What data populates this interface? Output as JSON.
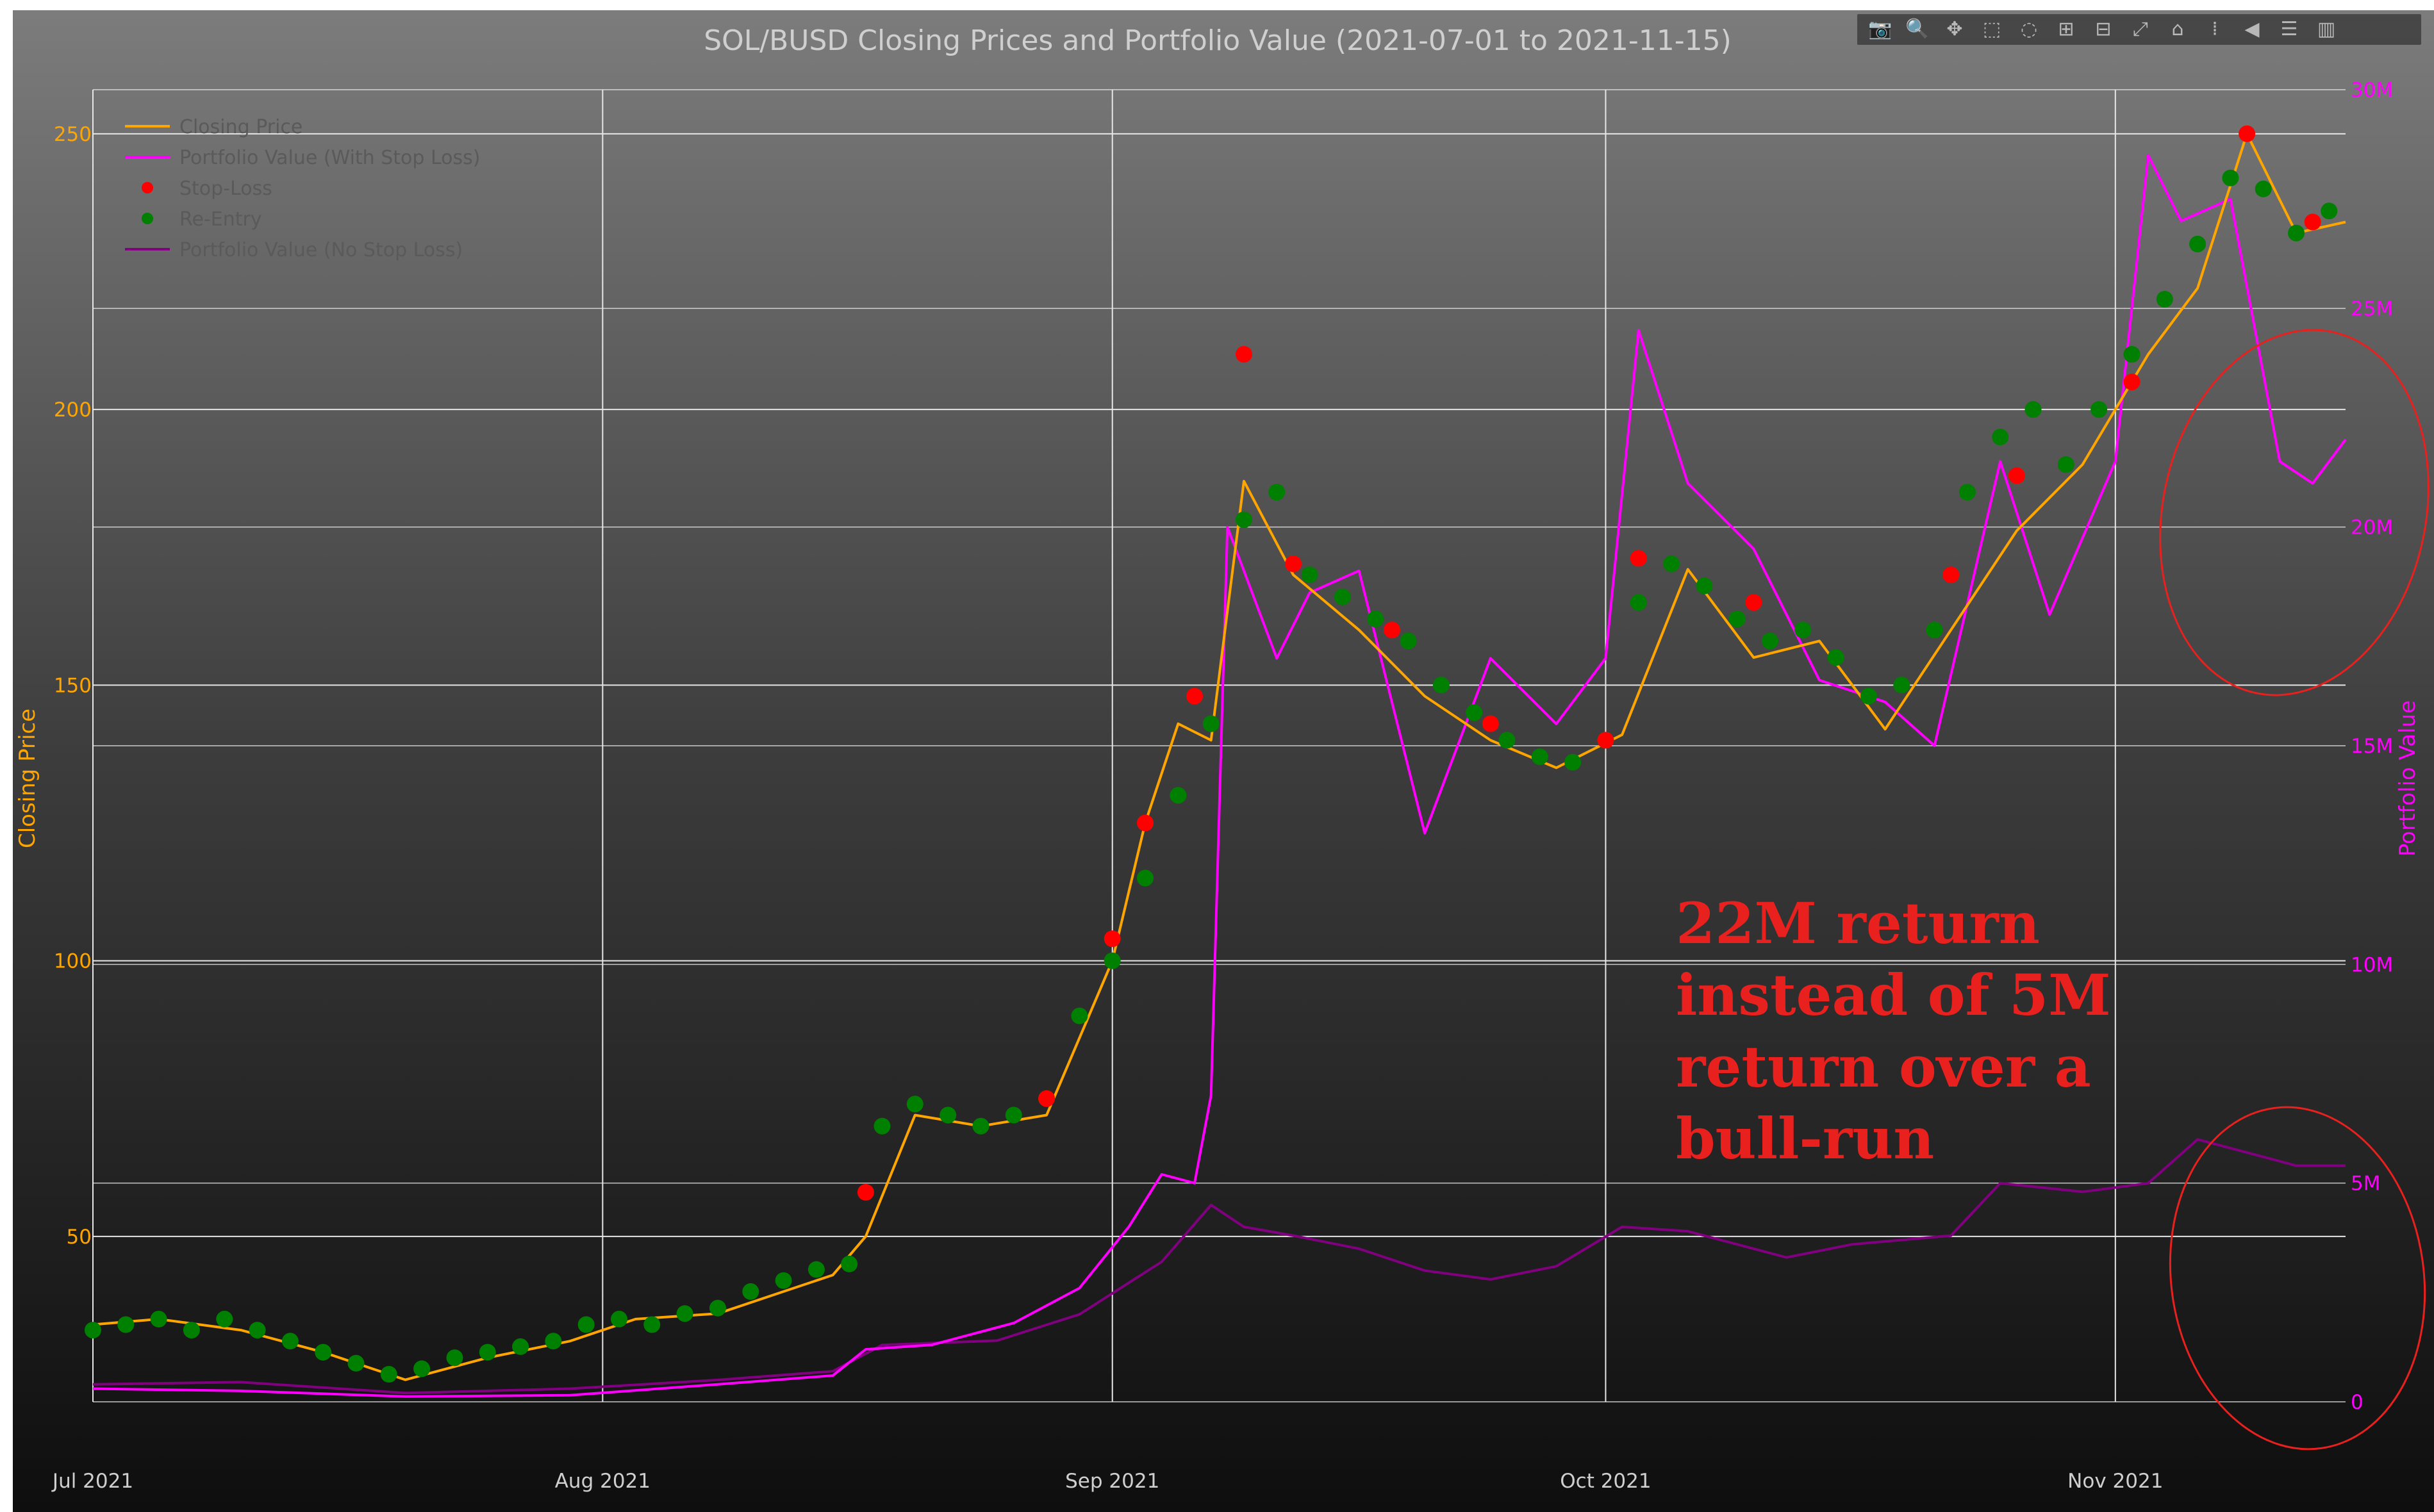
{
  "chart_data": {
    "type": "line",
    "title": "SOL/BUSD Closing Prices and Portfolio Value (2021-07-01 to 2021-11-15)",
    "xlabel": "",
    "ylabel": "Closing Price",
    "y2label": "Portfolio Value",
    "xlim": [
      "2021-07-01",
      "2021-11-15"
    ],
    "ylim": [
      20,
      258
    ],
    "y2lim": [
      0,
      30000000
    ],
    "x_ticks": [
      "Jul 2021",
      "Aug 2021",
      "Sep 2021",
      "Oct 2021",
      "Nov 2021"
    ],
    "y_ticks": [
      "50",
      "100",
      "150",
      "200",
      "250"
    ],
    "y2_ticks": [
      "0",
      "5M",
      "10M",
      "15M",
      "20M",
      "25M",
      "30M"
    ],
    "grid": true,
    "legend_position": "top-left",
    "legend": [
      "Closing Price",
      "Portfolio Value (With Stop Loss)",
      "Stop-Loss",
      "Re-Entry",
      "Portfolio Value (No Stop Loss)"
    ],
    "series": [
      {
        "name": "Closing Price",
        "type": "line",
        "axis": "y",
        "color": "#ffa500",
        "x": [
          "2021-07-01",
          "2021-07-05",
          "2021-07-10",
          "2021-07-15",
          "2021-07-20",
          "2021-07-25",
          "2021-07-30",
          "2021-08-03",
          "2021-08-08",
          "2021-08-12",
          "2021-08-15",
          "2021-08-17",
          "2021-08-20",
          "2021-08-24",
          "2021-08-28",
          "2021-09-01",
          "2021-09-03",
          "2021-09-05",
          "2021-09-07",
          "2021-09-09",
          "2021-09-12",
          "2021-09-16",
          "2021-09-20",
          "2021-09-24",
          "2021-09-28",
          "2021-10-02",
          "2021-10-06",
          "2021-10-10",
          "2021-10-14",
          "2021-10-18",
          "2021-10-22",
          "2021-10-26",
          "2021-10-30",
          "2021-11-03",
          "2021-11-06",
          "2021-11-09",
          "2021-11-12",
          "2021-11-15"
        ],
        "y": [
          34,
          35,
          33,
          29,
          24,
          28,
          31,
          35,
          36,
          40,
          43,
          50,
          72,
          70,
          72,
          100,
          125,
          143,
          140,
          187,
          170,
          160,
          148,
          140,
          135,
          141,
          171,
          155,
          158,
          142,
          160,
          178,
          190,
          210,
          222,
          250,
          232,
          234
        ]
      },
      {
        "name": "Portfolio Value (With Stop Loss)",
        "type": "line",
        "axis": "y2",
        "color": "#ff00ff",
        "x": [
          "2021-07-01",
          "2021-07-10",
          "2021-07-20",
          "2021-07-30",
          "2021-08-08",
          "2021-08-15",
          "2021-08-17",
          "2021-08-21",
          "2021-08-26",
          "2021-08-30",
          "2021-09-02",
          "2021-09-04",
          "2021-09-06",
          "2021-09-07",
          "2021-09-08",
          "2021-09-09",
          "2021-09-11",
          "2021-09-13",
          "2021-09-16",
          "2021-09-20",
          "2021-09-24",
          "2021-09-28",
          "2021-10-01",
          "2021-10-03",
          "2021-10-06",
          "2021-10-10",
          "2021-10-14",
          "2021-10-18",
          "2021-10-21",
          "2021-10-25",
          "2021-10-28",
          "2021-11-01",
          "2021-11-03",
          "2021-11-05",
          "2021-11-08",
          "2021-11-11",
          "2021-11-13",
          "2021-11-15"
        ],
        "y": [
          300000,
          250000,
          120000,
          150000,
          400000,
          600000,
          1200000,
          1300000,
          1800000,
          2600000,
          4000000,
          5200000,
          5000000,
          7000000,
          20000000,
          19000000,
          17000000,
          18500000,
          19000000,
          13000000,
          17000000,
          15500000,
          17000000,
          24500000,
          21000000,
          19500000,
          16500000,
          16000000,
          15000000,
          21500000,
          18000000,
          21500000,
          28500000,
          27000000,
          27500000,
          21500000,
          21000000,
          22000000
        ]
      },
      {
        "name": "Portfolio Value (No Stop Loss)",
        "type": "line",
        "axis": "y2",
        "color": "#800080",
        "x": [
          "2021-07-01",
          "2021-07-10",
          "2021-07-20",
          "2021-07-30",
          "2021-08-08",
          "2021-08-15",
          "2021-08-18",
          "2021-08-25",
          "2021-08-30",
          "2021-09-04",
          "2021-09-07",
          "2021-09-09",
          "2021-09-12",
          "2021-09-16",
          "2021-09-20",
          "2021-09-24",
          "2021-09-28",
          "2021-10-02",
          "2021-10-06",
          "2021-10-12",
          "2021-10-16",
          "2021-10-22",
          "2021-10-25",
          "2021-10-30",
          "2021-11-03",
          "2021-11-06",
          "2021-11-09",
          "2021-11-12",
          "2021-11-15"
        ],
        "y": [
          400000,
          450000,
          200000,
          300000,
          500000,
          700000,
          1300000,
          1400000,
          2000000,
          3200000,
          4500000,
          4000000,
          3800000,
          3500000,
          3000000,
          2800000,
          3100000,
          4000000,
          3900000,
          3300000,
          3600000,
          3800000,
          5000000,
          4800000,
          5000000,
          6000000,
          5700000,
          5400000,
          5400000
        ]
      },
      {
        "name": "Stop-Loss",
        "type": "scatter",
        "axis": "y",
        "color": "#ff0000",
        "x": [
          "2021-08-17",
          "2021-08-28",
          "2021-09-01",
          "2021-09-03",
          "2021-09-06",
          "2021-09-09",
          "2021-09-12",
          "2021-09-18",
          "2021-09-24",
          "2021-10-01",
          "2021-10-03",
          "2021-10-10",
          "2021-10-22",
          "2021-10-26",
          "2021-11-02",
          "2021-11-09",
          "2021-11-13"
        ],
        "y": [
          58,
          75,
          104,
          125,
          148,
          210,
          172,
          160,
          143,
          140,
          173,
          165,
          170,
          188,
          205,
          250,
          234
        ]
      },
      {
        "name": "Re-Entry",
        "type": "scatter",
        "axis": "y",
        "color": "#008000",
        "x": [
          "2021-07-01",
          "2021-07-03",
          "2021-07-05",
          "2021-07-07",
          "2021-07-09",
          "2021-07-11",
          "2021-07-13",
          "2021-07-15",
          "2021-07-17",
          "2021-07-19",
          "2021-07-21",
          "2021-07-23",
          "2021-07-25",
          "2021-07-27",
          "2021-07-29",
          "2021-07-31",
          "2021-08-02",
          "2021-08-04",
          "2021-08-06",
          "2021-08-08",
          "2021-08-10",
          "2021-08-12",
          "2021-08-14",
          "2021-08-16",
          "2021-08-18",
          "2021-08-20",
          "2021-08-22",
          "2021-08-24",
          "2021-08-26",
          "2021-08-28",
          "2021-08-30",
          "2021-09-01",
          "2021-09-03",
          "2021-09-05",
          "2021-09-07",
          "2021-09-09",
          "2021-09-11",
          "2021-09-13",
          "2021-09-15",
          "2021-09-17",
          "2021-09-19",
          "2021-09-21",
          "2021-09-23",
          "2021-09-25",
          "2021-09-27",
          "2021-09-29",
          "2021-10-01",
          "2021-10-03",
          "2021-10-05",
          "2021-10-07",
          "2021-10-09",
          "2021-10-11",
          "2021-10-13",
          "2021-10-15",
          "2021-10-17",
          "2021-10-19",
          "2021-10-21",
          "2021-10-23",
          "2021-10-25",
          "2021-10-27",
          "2021-10-29",
          "2021-10-31",
          "2021-11-02",
          "2021-11-04",
          "2021-11-06",
          "2021-11-08",
          "2021-11-10",
          "2021-11-12",
          "2021-11-14"
        ],
        "y": [
          33,
          34,
          35,
          33,
          35,
          33,
          31,
          29,
          27,
          25,
          26,
          28,
          29,
          30,
          31,
          34,
          35,
          34,
          36,
          37,
          40,
          42,
          44,
          45,
          70,
          74,
          72,
          70,
          72,
          75,
          90,
          100,
          115,
          130,
          143,
          180,
          185,
          170,
          166,
          162,
          158,
          150,
          145,
          140,
          137,
          136,
          140,
          165,
          172,
          168,
          162,
          158,
          160,
          155,
          148,
          150,
          160,
          185,
          195,
          200,
          190,
          200,
          210,
          220,
          230,
          242,
          240,
          232,
          236
        ]
      }
    ],
    "annotations": [
      {
        "text": "22M return\ninstead of 5M\nreturn over a\nbull-run",
        "color": "#e8201e"
      }
    ]
  },
  "toolbar": {
    "buttons": [
      {
        "name": "camera-icon",
        "glyph": "📷"
      },
      {
        "name": "zoom-icon",
        "glyph": "🔍"
      },
      {
        "name": "pan-icon",
        "glyph": "✥"
      },
      {
        "name": "box-select-icon",
        "glyph": "⬚"
      },
      {
        "name": "lasso-select-icon",
        "glyph": "◌"
      },
      {
        "name": "zoom-in-icon",
        "glyph": "⊞"
      },
      {
        "name": "zoom-out-icon",
        "glyph": "⊟"
      },
      {
        "name": "autoscale-icon",
        "glyph": "⤢"
      },
      {
        "name": "reset-axes-icon",
        "glyph": "⌂"
      },
      {
        "name": "spike-lines-icon",
        "glyph": "⁞"
      },
      {
        "name": "hover-closest-icon",
        "glyph": "◀"
      },
      {
        "name": "hover-compare-icon",
        "glyph": "☰"
      },
      {
        "name": "plotly-logo-icon",
        "glyph": "▥"
      }
    ]
  }
}
